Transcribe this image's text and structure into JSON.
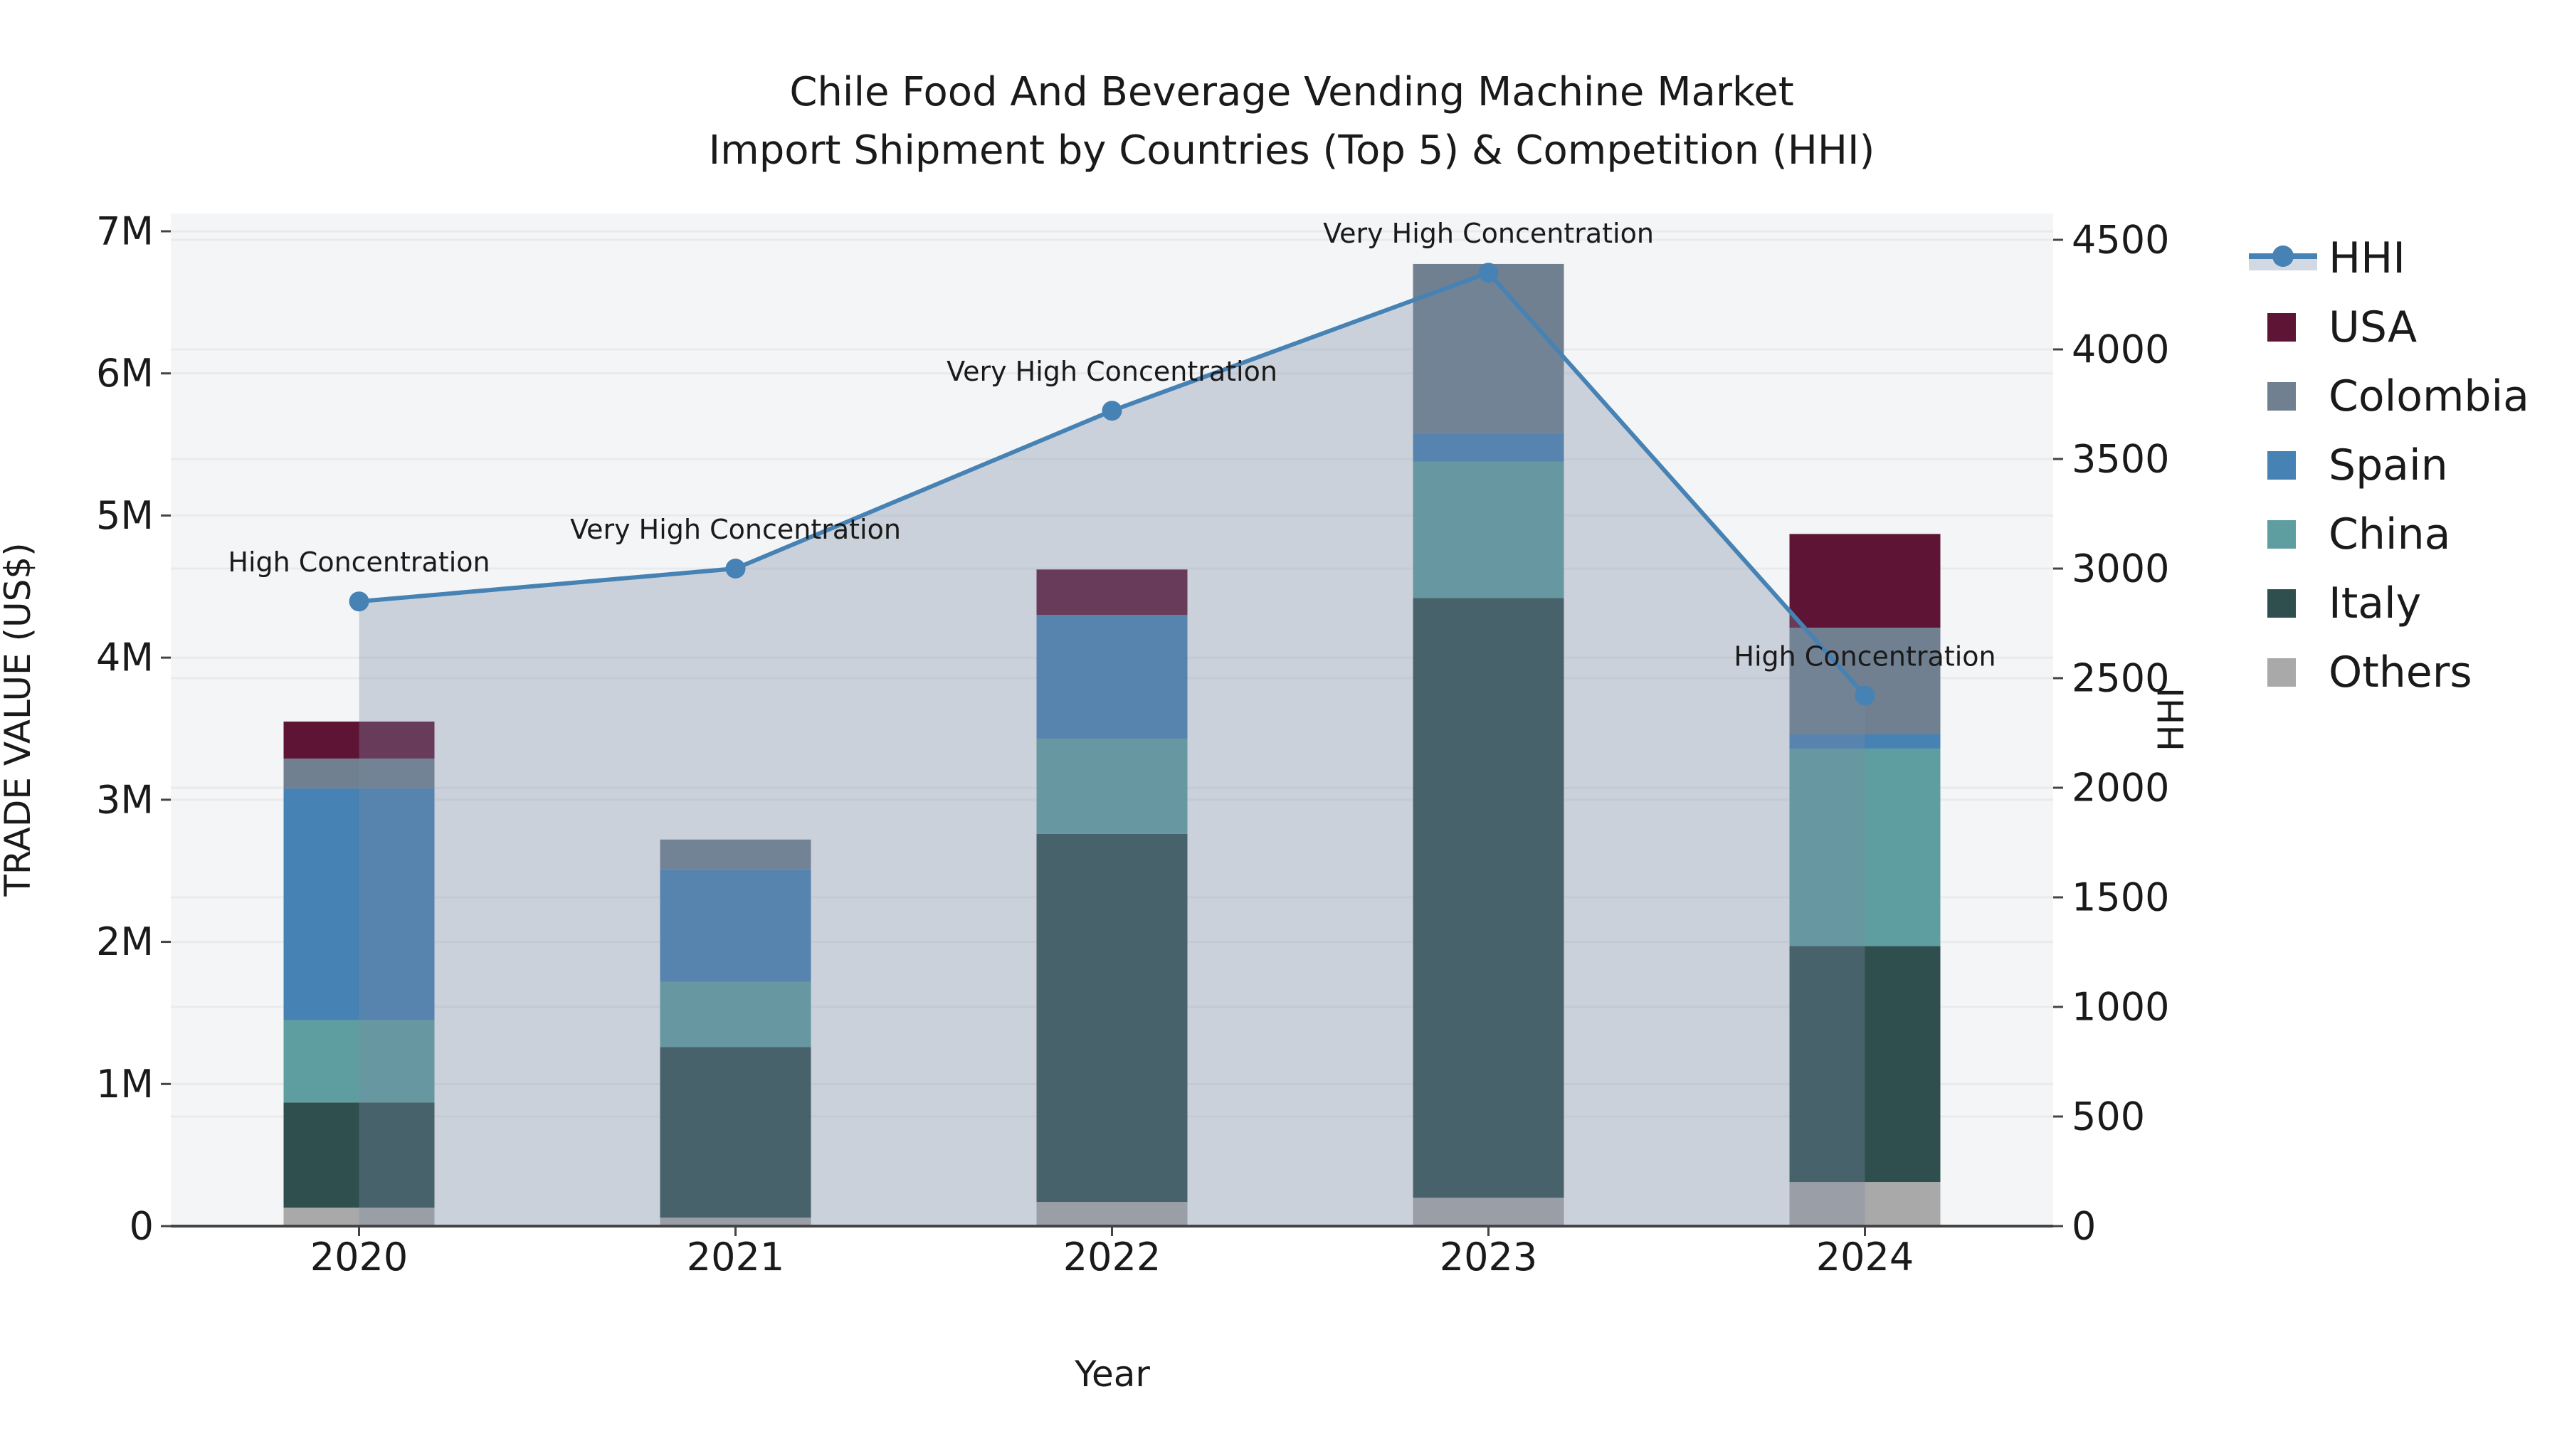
{
  "figure": {
    "title_line1": "Chile Food And Beverage Vending Machine Market",
    "title_line2": "Import Shipment by Countries (Top 5) & Competition (HHI)"
  },
  "chart_data": {
    "type": "bar+line",
    "title": "Chile Food And Beverage Vending Machine Market Import Shipment by Countries (Top 5) & Competition (HHI)",
    "xlabel": "Year",
    "ylabel_left": "TRADE VALUE (US$)",
    "ylabel_right": "HHI",
    "categories": [
      "2020",
      "2021",
      "2022",
      "2023",
      "2024"
    ],
    "values_unit": "million US$",
    "series": [
      {
        "name": "Others",
        "color": "#a9a9a9",
        "values": [
          0.13,
          0.06,
          0.17,
          0.2,
          0.31
        ]
      },
      {
        "name": "Italy",
        "color": "#2f4f4f",
        "values": [
          0.74,
          1.2,
          2.59,
          4.22,
          1.66
        ]
      },
      {
        "name": "China",
        "color": "#5f9ea0",
        "values": [
          0.58,
          0.46,
          0.67,
          0.96,
          1.39
        ]
      },
      {
        "name": "Spain",
        "color": "#4682b4",
        "values": [
          1.63,
          0.79,
          0.87,
          0.2,
          0.1
        ]
      },
      {
        "name": "Colombia",
        "color": "#708090",
        "values": [
          0.21,
          0.21,
          0.0,
          1.19,
          0.75
        ]
      },
      {
        "name": "USA",
        "color": "#5e1535",
        "values": [
          0.26,
          0.0,
          0.32,
          0.0,
          0.66
        ]
      }
    ],
    "line_series": {
      "name": "HHI",
      "color": "#4682b4",
      "area_fill_color": "rgba(120,136,164,0.33)",
      "values": [
        2850,
        3000,
        3720,
        4350,
        2420
      ]
    },
    "annotations": [
      {
        "x": "2020",
        "text": "High Concentration"
      },
      {
        "x": "2021",
        "text": "Very High Concentration"
      },
      {
        "x": "2022",
        "text": "Very High Concentration"
      },
      {
        "x": "2023",
        "text": "Very High Concentration"
      },
      {
        "x": "2024",
        "text": "High Concentration"
      }
    ],
    "axes": {
      "left": {
        "range_millions": [
          0,
          7
        ],
        "ticks": [
          "0",
          "1M",
          "2M",
          "3M",
          "4M",
          "5M",
          "6M",
          "7M"
        ]
      },
      "right": {
        "range": [
          0,
          4500
        ],
        "ticks": [
          "0",
          "500",
          "1000",
          "1500",
          "2000",
          "2500",
          "3000",
          "3500",
          "4000",
          "4500"
        ]
      },
      "grid": true
    },
    "legend": [
      {
        "label": "HHI",
        "type": "line"
      },
      {
        "label": "USA",
        "type": "square",
        "color": "#5e1535"
      },
      {
        "label": "Colombia",
        "type": "square",
        "color": "#708090"
      },
      {
        "label": "Spain",
        "type": "square",
        "color": "#4682b4"
      },
      {
        "label": "China",
        "type": "square",
        "color": "#5f9ea0"
      },
      {
        "label": "Italy",
        "type": "square",
        "color": "#2f4f4f"
      },
      {
        "label": "Others",
        "type": "square",
        "color": "#a9a9a9"
      }
    ],
    "style": {
      "plot_bg": "#f4f5f6",
      "grid_color": "#e8eaec",
      "spine_color": "#444444",
      "text_color": "#1a1a1a"
    }
  }
}
